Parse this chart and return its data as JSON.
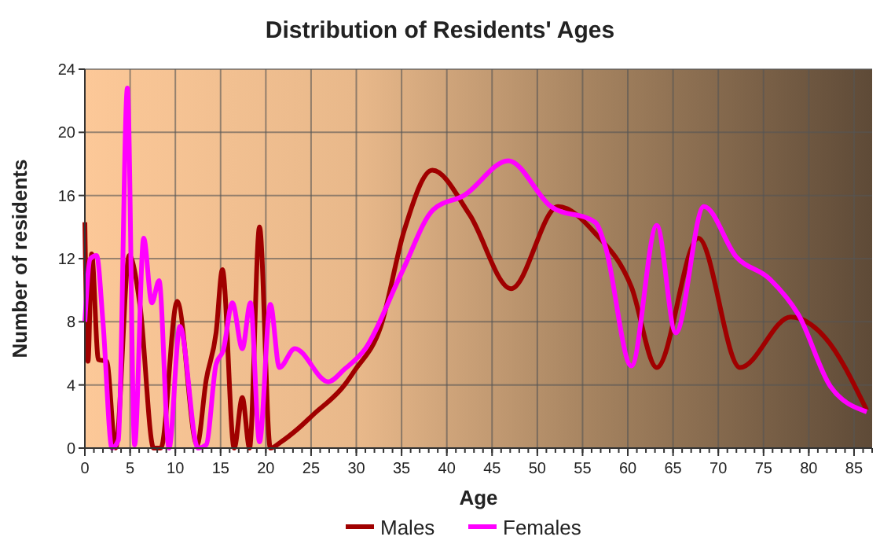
{
  "chart_data": {
    "type": "line",
    "title": "Distribution of Residents' Ages",
    "xlabel": "Age",
    "ylabel": "Number of residents",
    "xlim": [
      0,
      87
    ],
    "xticks": [
      0,
      5,
      10,
      15,
      20,
      25,
      30,
      35,
      40,
      45,
      50,
      55,
      60,
      65,
      70,
      75,
      80,
      85
    ],
    "ylim": [
      0,
      24
    ],
    "yticks": [
      0,
      4,
      8,
      12,
      16,
      20,
      24
    ],
    "grid": true,
    "legend": "bottom",
    "marker": "none",
    "line_style": "solid",
    "series": [
      {
        "name": "Males",
        "color": "#a00000",
        "x": [
          0,
          0.35,
          0.75,
          1.5,
          2.4,
          3.4,
          4.9,
          6.1,
          7.6,
          8.4,
          10.2,
          12.4,
          13.4,
          14.5,
          15.2,
          16.5,
          17.4,
          18.2,
          19.3,
          20.5,
          21.7,
          23.5,
          25.2,
          28.7,
          29.8,
          32.7,
          35.3,
          38.4,
          42.5,
          47.1,
          52.3,
          56.4,
          60.4,
          63.2,
          67.8,
          72.4,
          78,
          81.8,
          86.4
        ],
        "values": [
          14.3,
          5.5,
          12.3,
          5.6,
          5.5,
          0,
          12.2,
          9,
          0,
          0,
          9.3,
          0.2,
          4.3,
          7.3,
          11.3,
          0,
          3.2,
          0,
          14,
          0,
          0.4,
          1.2,
          2.1,
          4,
          4.9,
          7.7,
          13.8,
          17.6,
          14.8,
          10.1,
          15.3,
          13.6,
          10.2,
          5.1,
          13.3,
          5.1,
          8.3,
          7,
          2.4
        ]
      },
      {
        "name": "Females",
        "color": "#ff00ff",
        "x": [
          0,
          0.6,
          1.3,
          2,
          3,
          3.7,
          4.7,
          5.5,
          6.5,
          7.4,
          8.2,
          9.3,
          10.5,
          12.5,
          13.4,
          14.5,
          15.3,
          16.3,
          17.4,
          18.3,
          19.3,
          20.5,
          21.5,
          23.2,
          26.9,
          28.7,
          31,
          35,
          38.5,
          41.9,
          46.8,
          51.5,
          56.4,
          57.5,
          60.4,
          63.2,
          65.3,
          68.4,
          72,
          75.7,
          78.9,
          82.4,
          86.4
        ],
        "values": [
          8,
          12,
          12.2,
          8,
          0,
          0.5,
          22.8,
          0.2,
          13.3,
          9.2,
          10.6,
          0,
          7.7,
          0,
          0.2,
          5.3,
          6.2,
          9.2,
          6.3,
          9.2,
          0.4,
          9.1,
          5.1,
          6.3,
          4.2,
          5,
          6.3,
          11.1,
          15.1,
          16,
          18.2,
          15.3,
          14.3,
          12.8,
          5.2,
          14.1,
          7.3,
          15.3,
          12.1,
          10.7,
          8.4,
          3.9,
          2.3
        ]
      }
    ]
  }
}
